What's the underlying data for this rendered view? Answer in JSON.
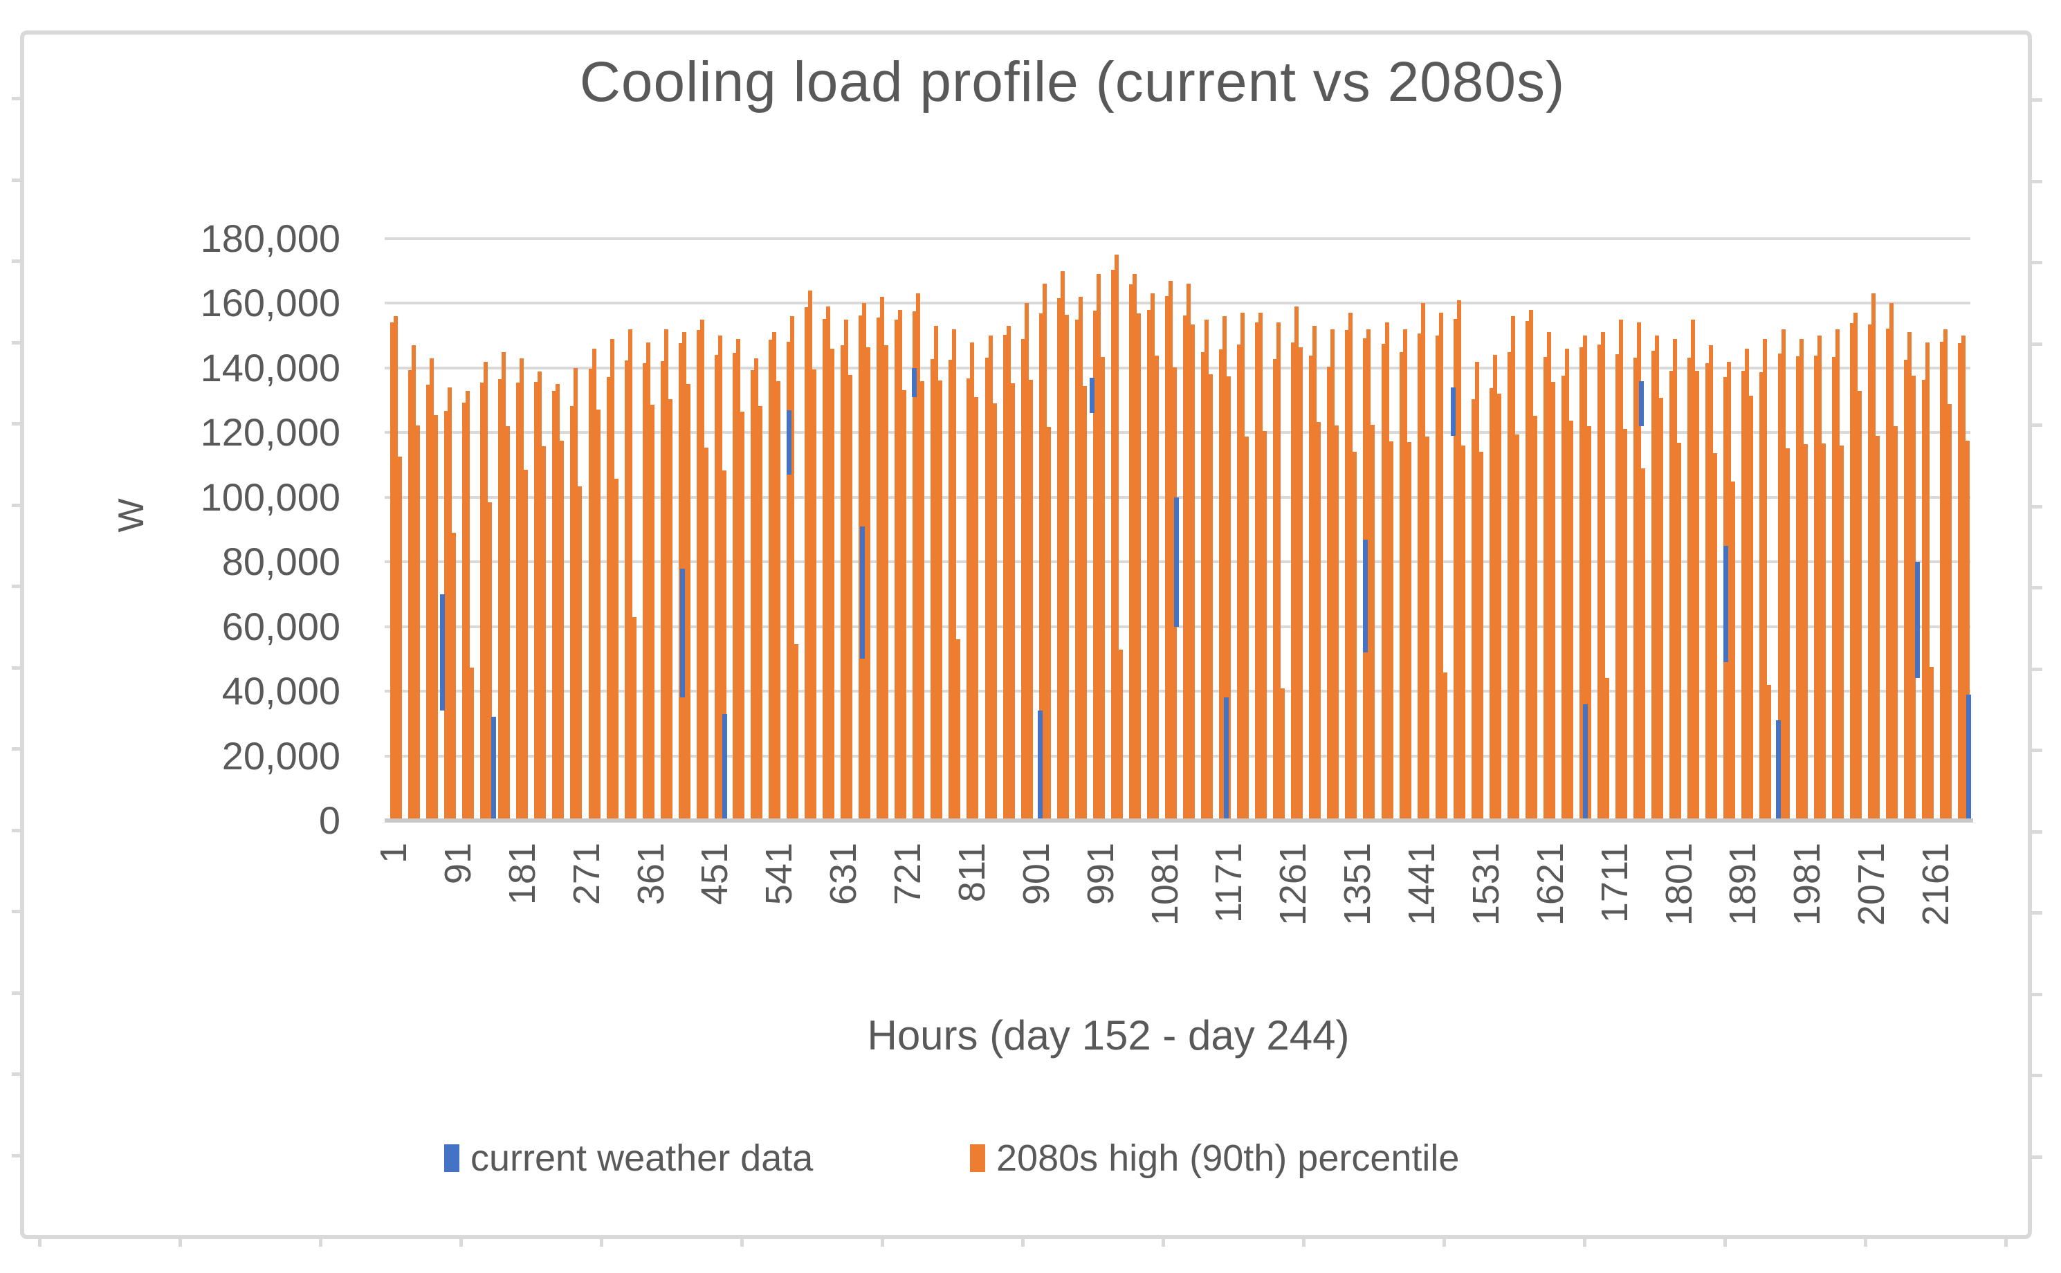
{
  "chart": {
    "title": "Cooling load profile (current vs 2080s)",
    "x_axis_title": "Hours (day 152 - day 244)",
    "y_axis_title": "W",
    "colors": {
      "current_series": "#4472C4",
      "future_series": "#ED7D31",
      "gridline": "#D9D9D9",
      "axis_line": "#C9C9C9",
      "text": "#595959",
      "frame_border": "#D9D9D9"
    }
  },
  "chart_data": {
    "type": "bar",
    "title": "Cooling load profile (current vs 2080s)",
    "xlabel": "Hours (day 152 - day 244)",
    "ylabel": "W",
    "ylim": [
      0,
      180000
    ],
    "grid": "horizontal",
    "legend_position": "bottom",
    "y_ticks": [
      0,
      20000,
      40000,
      60000,
      80000,
      100000,
      120000,
      140000,
      160000,
      180000
    ],
    "y_tick_labels": [
      "0",
      "20,000",
      "40,000",
      "60,000",
      "80,000",
      "100,000",
      "120,000",
      "140,000",
      "160,000",
      "180,000"
    ],
    "x_tick_labels": [
      "1",
      "91",
      "181",
      "271",
      "361",
      "451",
      "541",
      "631",
      "721",
      "811",
      "901",
      "991",
      "1081",
      "1171",
      "1261",
      "1351",
      "1441",
      "1531",
      "1621",
      "1711",
      "1801",
      "1891",
      "1981",
      "2071",
      "2161"
    ],
    "x_range_hours": [
      1,
      2208
    ],
    "series": [
      {
        "name": "current weather data",
        "type": "bar",
        "color": "#4472C4",
        "visible_bars": [
          {
            "pos": 0.036,
            "from": 34000,
            "to": 70000
          },
          {
            "pos": 0.0685,
            "from": 0,
            "to": 32000
          },
          {
            "pos": 0.1876,
            "from": 38000,
            "to": 78000
          },
          {
            "pos": 0.2142,
            "from": 0,
            "to": 33000
          },
          {
            "pos": 0.2548,
            "from": 107000,
            "to": 127000
          },
          {
            "pos": 0.3011,
            "from": 50000,
            "to": 91000
          },
          {
            "pos": 0.3338,
            "from": 131000,
            "to": 140000
          },
          {
            "pos": 0.4132,
            "from": 0,
            "to": 34000
          },
          {
            "pos": 0.4459,
            "from": 126000,
            "to": 137000
          },
          {
            "pos": 0.4991,
            "from": 60000,
            "to": 100000
          },
          {
            "pos": 0.5305,
            "from": 0,
            "to": 38000
          },
          {
            "pos": 0.6182,
            "from": 52000,
            "to": 87000
          },
          {
            "pos": 0.6736,
            "from": 119000,
            "to": 134000
          },
          {
            "pos": 0.757,
            "from": 0,
            "to": 36000
          },
          {
            "pos": 0.7923,
            "from": 122000,
            "to": 136000
          },
          {
            "pos": 0.8455,
            "from": 49000,
            "to": 85000
          },
          {
            "pos": 0.8787,
            "from": 0,
            "to": 31000
          },
          {
            "pos": 0.9664,
            "from": 44000,
            "to": 80000
          },
          {
            "pos": 0.9985,
            "from": 0,
            "to": 39000
          }
        ]
      },
      {
        "name": "2080s high (90th) percentile",
        "type": "bar",
        "color": "#ED7D31",
        "day_peaks_w": [
          156000,
          147000,
          143000,
          134000,
          133000,
          142000,
          145000,
          143000,
          139000,
          135000,
          140000,
          146000,
          149000,
          152000,
          148000,
          152000,
          151000,
          155000,
          150000,
          149000,
          143000,
          151000,
          156000,
          164000,
          159000,
          155000,
          160000,
          162000,
          158000,
          163000,
          153000,
          152000,
          148000,
          150000,
          153000,
          160000,
          166000,
          170000,
          162000,
          169000,
          175000,
          169000,
          163000,
          167000,
          166000,
          155000,
          156000,
          157000,
          157000,
          154000,
          159000,
          153000,
          152000,
          157000,
          152000,
          154000,
          152000,
          160000,
          157000,
          161000,
          142000,
          144000,
          156000,
          158000,
          151000,
          146000,
          150000,
          151000,
          155000,
          154000,
          150000,
          149000,
          155000,
          147000,
          142000,
          146000,
          149000,
          152000,
          149000,
          150000,
          152000,
          157000,
          163000,
          160000,
          151000,
          148000,
          152000,
          150000
        ]
      }
    ]
  }
}
